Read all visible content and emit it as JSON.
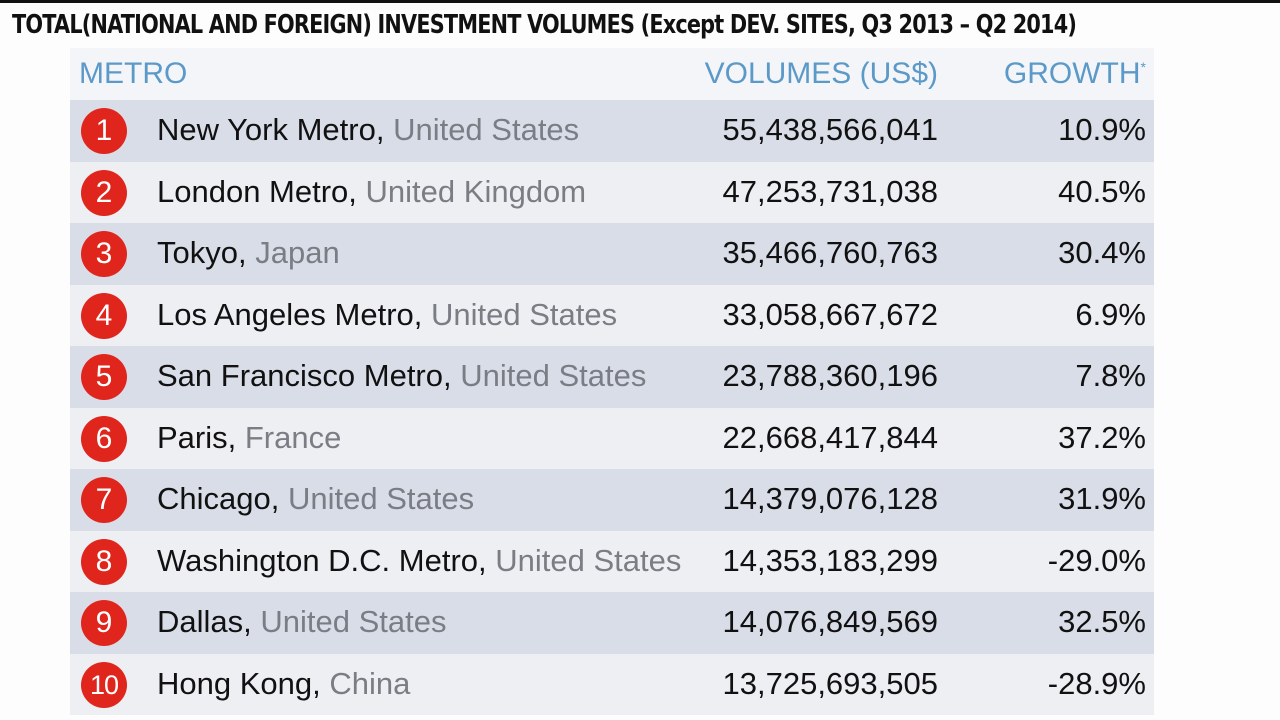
{
  "title": "TOTAL(NATIONAL AND FOREIGN) INVESTMENT VOLUMES (Except DEV. SITES, Q3 2013 – Q2 2014)",
  "colors": {
    "accent": "#5b9ac8",
    "badge": "#e0261c",
    "row_dark": "#d9dde8",
    "row_light": "#edeff3",
    "country_text": "#7a7e84"
  },
  "chart_data": {
    "type": "table",
    "title": "TOTAL(NATIONAL AND FOREIGN) INVESTMENT VOLUMES (Except DEV. SITES, Q3 2013 – Q2 2014)",
    "columns": {
      "metro": "METRO",
      "volumes": "VOLUMES (US$)",
      "growth": "GROWTH",
      "growth_mark": "*"
    },
    "rows": [
      {
        "rank": "1",
        "metro": "New York Metro,",
        "country": "United States",
        "volume": "55,438,566,041",
        "growth": "10.9%"
      },
      {
        "rank": "2",
        "metro": "London Metro,",
        "country": "United Kingdom",
        "volume": "47,253,731,038",
        "growth": "40.5%"
      },
      {
        "rank": "3",
        "metro": "Tokyo,",
        "country": "Japan",
        "volume": "35,466,760,763",
        "growth": "30.4%"
      },
      {
        "rank": "4",
        "metro": "Los Angeles Metro,",
        "country": "United States",
        "volume": "33,058,667,672",
        "growth": "6.9%"
      },
      {
        "rank": "5",
        "metro": "San Francisco Metro,",
        "country": "United States",
        "volume": "23,788,360,196",
        "growth": "7.8%"
      },
      {
        "rank": "6",
        "metro": "Paris,",
        "country": "France",
        "volume": "22,668,417,844",
        "growth": "37.2%"
      },
      {
        "rank": "7",
        "metro": "Chicago,",
        "country": "United States",
        "volume": "14,379,076,128",
        "growth": "31.9%"
      },
      {
        "rank": "8",
        "metro": "Washington D.C. Metro,",
        "country": "United States",
        "volume": "14,353,183,299",
        "growth": "-29.0%"
      },
      {
        "rank": "9",
        "metro": "Dallas,",
        "country": "United States",
        "volume": "14,076,849,569",
        "growth": "32.5%"
      },
      {
        "rank": "10",
        "metro": "Hong Kong,",
        "country": "China",
        "volume": "13,725,693,505",
        "growth": "-28.9%"
      }
    ]
  }
}
